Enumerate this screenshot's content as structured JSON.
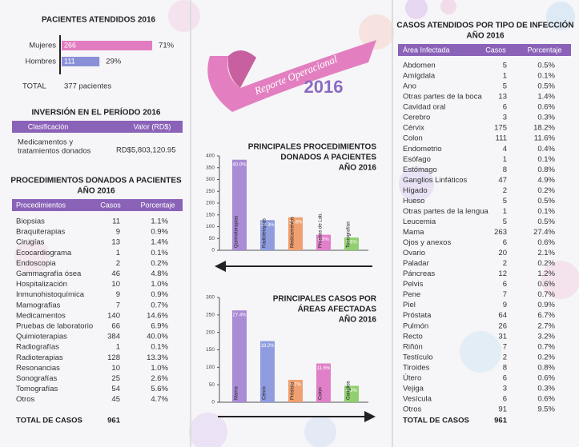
{
  "chart_data": [
    {
      "type": "hbar",
      "title": "PACIENTES ATENDIDOS 2016",
      "categories": [
        "Mujeres",
        "Hombres"
      ],
      "values": [
        266,
        111
      ],
      "colors": [
        "#e27cc0",
        "#8a90d8"
      ],
      "shares": [
        "71%",
        "29%"
      ],
      "total_label": "TOTAL",
      "total_text": "377 pacientes"
    },
    {
      "type": "bar",
      "title": [
        "PRINCIPALES PROCEDIMIENTOS",
        "DONADOS A PACIENTES",
        "AÑO 2016"
      ],
      "categories": [
        "Quimioterapias",
        "Radioterapias",
        "Medicamentos",
        "Pruebas de Lab.",
        "Tomografías"
      ],
      "values": [
        384,
        128,
        140,
        66,
        54
      ],
      "bar_labels": [
        "40.0%",
        "13.3%",
        "14.6%",
        "6.9%",
        "5.6%"
      ],
      "colors": [
        "#a98bd6",
        "#8f9de0",
        "#f0a070",
        "#e080c8",
        "#90d070"
      ],
      "ylim": [
        0,
        400
      ],
      "yticks": [
        0,
        50,
        100,
        150,
        200,
        250,
        300,
        350,
        400
      ]
    },
    {
      "type": "bar",
      "title": [
        "PRINCIPALES CASOS POR",
        "ÁREAS AFECTADAS",
        "AÑO 2016"
      ],
      "categories": [
        "Mama",
        "Cérvix",
        "Próstata",
        "Colon",
        "Ganglios"
      ],
      "values": [
        263,
        175,
        64,
        111,
        47
      ],
      "bar_labels": [
        "27.4%",
        "18.2%",
        "6.7%",
        "11.6%",
        "4.9%"
      ],
      "colors": [
        "#a98bd6",
        "#8f9de0",
        "#f0a070",
        "#e080c8",
        "#90d070"
      ],
      "ylim": [
        0,
        300
      ],
      "yticks": [
        0,
        50,
        100,
        150,
        200,
        250,
        300
      ]
    }
  ],
  "banner": {
    "title": "Reporte Operacional",
    "year": "2016"
  },
  "investment": {
    "title": "INVERSIÓN EN EL PERÍODO 2016",
    "headers": [
      "Clasificación",
      "Valor (RD$)"
    ],
    "row": [
      [
        "Medicamentos y",
        "tratamientos donados"
      ],
      "RD$5,803,120.95"
    ]
  },
  "procedures_table": {
    "title": [
      "PROCEDIMIENTOS DONADOS A PACIENTES",
      "AÑO 2016"
    ],
    "headers": [
      "Procedimientos",
      "Casos",
      "Porcentaje"
    ],
    "rows": [
      [
        "Biopsias",
        11,
        "1.1%"
      ],
      [
        "Braquiterapias",
        9,
        "0.9%"
      ],
      [
        "Cirugías",
        13,
        "1.4%"
      ],
      [
        "Ecocardiograma",
        1,
        "0.1%"
      ],
      [
        "Endoscopia",
        2,
        "0.2%"
      ],
      [
        "Gammagrafía ósea",
        46,
        "4.8%"
      ],
      [
        "Hospitalización",
        10,
        "1.0%"
      ],
      [
        "Inmunohistoquímica",
        9,
        "0.9%"
      ],
      [
        "Mamografías",
        7,
        "0.7%"
      ],
      [
        "Medicamentos",
        140,
        "14.6%"
      ],
      [
        "Pruebas de laboratorio",
        66,
        "6.9%"
      ],
      [
        "Quimioterapias",
        384,
        "40.0%"
      ],
      [
        "Radiografías",
        1,
        "0.1%"
      ],
      [
        "Radioterapias",
        128,
        "13.3%"
      ],
      [
        "Resonancias",
        10,
        "1.0%"
      ],
      [
        "Sonografías",
        25,
        "2.6%"
      ],
      [
        "Tomografías",
        54,
        "5.6%"
      ],
      [
        "Otros",
        45,
        "4.7%"
      ]
    ],
    "total": [
      "TOTAL DE CASOS",
      961
    ]
  },
  "cases_table": {
    "title": [
      "CASOS ATENDIDOS POR TIPO DE INFECCIÓN",
      "AÑO 2016"
    ],
    "headers": [
      "Área Infectada",
      "Casos",
      "Porcentaje"
    ],
    "rows": [
      [
        "Abdomen",
        5,
        "0.5%"
      ],
      [
        "Amígdala",
        1,
        "0.1%"
      ],
      [
        "Ano",
        5,
        "0.5%"
      ],
      [
        "Otras partes de la boca",
        13,
        "1.4%"
      ],
      [
        "Cavidad oral",
        6,
        "0.6%"
      ],
      [
        "Cerebro",
        3,
        "0.3%"
      ],
      [
        "Cérvix",
        175,
        "18.2%"
      ],
      [
        "Colon",
        111,
        "11.6%"
      ],
      [
        "Endometrio",
        4,
        "0.4%"
      ],
      [
        "Esófago",
        1,
        "0.1%"
      ],
      [
        "Estómago",
        8,
        "0.8%"
      ],
      [
        "Ganglios Linfáticos",
        47,
        "4.9%"
      ],
      [
        "Hígado",
        2,
        "0.2%"
      ],
      [
        "Hueso",
        5,
        "0.5%"
      ],
      [
        "Otras partes de la lengua",
        1,
        "0.1%"
      ],
      [
        "Leucemia",
        5,
        "0.5%"
      ],
      [
        "Mama",
        263,
        "27.4%"
      ],
      [
        "Ojos y anexos",
        6,
        "0.6%"
      ],
      [
        "Ovario",
        20,
        "2.1%"
      ],
      [
        "Paladar",
        2,
        "0.2%"
      ],
      [
        "Páncreas",
        12,
        "1.2%"
      ],
      [
        "Pelvis",
        6,
        "0.6%"
      ],
      [
        "Pene",
        7,
        "0.7%"
      ],
      [
        "Piel",
        9,
        "0.9%"
      ],
      [
        "Próstata",
        64,
        "6.7%"
      ],
      [
        "Pulmón",
        26,
        "2.7%"
      ],
      [
        "Recto",
        31,
        "3.2%"
      ],
      [
        "Riñón",
        7,
        "0.7%"
      ],
      [
        "Testículo",
        2,
        "0.2%"
      ],
      [
        "Tiroides",
        8,
        "0.8%"
      ],
      [
        "Útero",
        6,
        "0.6%"
      ],
      [
        "Vejiga",
        3,
        "0.3%"
      ],
      [
        "Vesícula",
        6,
        "0.6%"
      ],
      [
        "Otros",
        91,
        "9.5%"
      ]
    ],
    "total": [
      "TOTAL DE CASOS",
      961
    ]
  }
}
